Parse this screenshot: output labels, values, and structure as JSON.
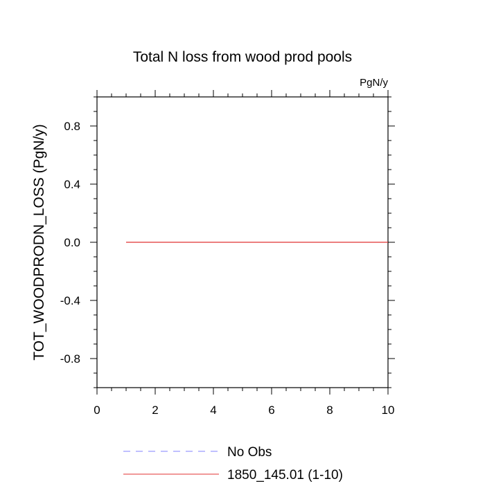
{
  "chart_data": {
    "type": "line",
    "title": "Total N loss from wood prod pools",
    "units_label": "PgN/y",
    "xlabel": "",
    "ylabel": "TOT_WOODPRODN_LOSS  (PgN/y)",
    "xlim": [
      0,
      10
    ],
    "ylim": [
      -1,
      1
    ],
    "xticks": [
      0,
      2,
      4,
      6,
      8,
      10
    ],
    "xtick_labels": [
      "0",
      "2",
      "4",
      "6",
      "8",
      "10"
    ],
    "yticks": [
      0.8,
      0.4,
      0.0,
      -0.4,
      -0.8
    ],
    "ytick_labels": [
      "0.8",
      "0.4",
      "0.0",
      "-0.4",
      "-0.8"
    ],
    "grid": false,
    "legend_position": "bottom",
    "series": [
      {
        "name": "No Obs",
        "color": "#8080ff",
        "dashed": true,
        "x": [],
        "y": []
      },
      {
        "name": "1850_145.01 (1-10)",
        "color": "#e03030",
        "dashed": false,
        "x": [
          1,
          2,
          3,
          4,
          5,
          6,
          7,
          8,
          9,
          10
        ],
        "y": [
          0,
          0,
          0,
          0,
          0,
          0,
          0,
          0,
          0,
          0
        ]
      }
    ]
  }
}
